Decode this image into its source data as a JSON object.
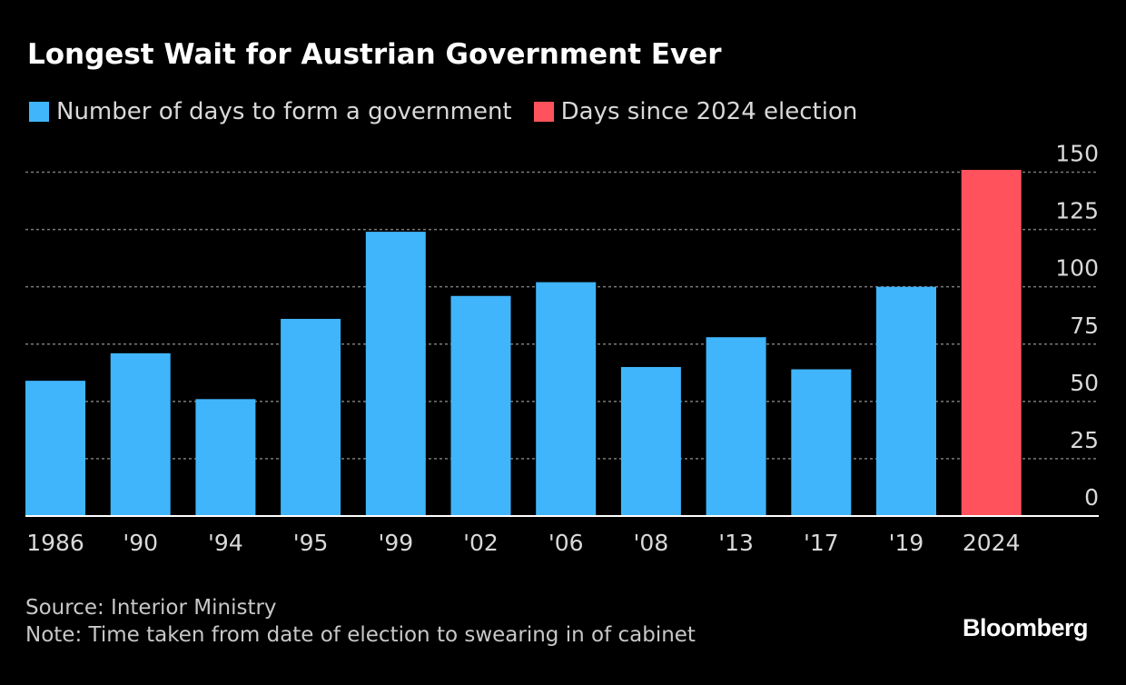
{
  "chart_data": {
    "type": "bar",
    "title": "Longest Wait for Austrian Government Ever",
    "categories": [
      "1986",
      "'90",
      "'94",
      "'95",
      "'99",
      "'02",
      "'06",
      "'08",
      "'13",
      "'17",
      "'19",
      "2024"
    ],
    "series": [
      {
        "name": "Number of days to form a government",
        "color": "#40b5fb",
        "values": [
          59,
          71,
          51,
          86,
          124,
          96,
          102,
          65,
          78,
          64,
          100,
          null
        ]
      },
      {
        "name": "Days since 2024 election",
        "color": "#ff525c",
        "values": [
          null,
          null,
          null,
          null,
          null,
          null,
          null,
          null,
          null,
          null,
          null,
          151
        ]
      }
    ],
    "yticks": [
      "0",
      "25",
      "50",
      "75",
      "100",
      "125",
      "150"
    ],
    "ylim": [
      0,
      150
    ],
    "xlabel": "",
    "ylabel": "",
    "grid": true,
    "legend": "top-left"
  },
  "footer": {
    "source": "Source: Interior Ministry",
    "note": "Note: Time taken from date of election to swearing in of cabinet"
  },
  "brand": "Bloomberg"
}
